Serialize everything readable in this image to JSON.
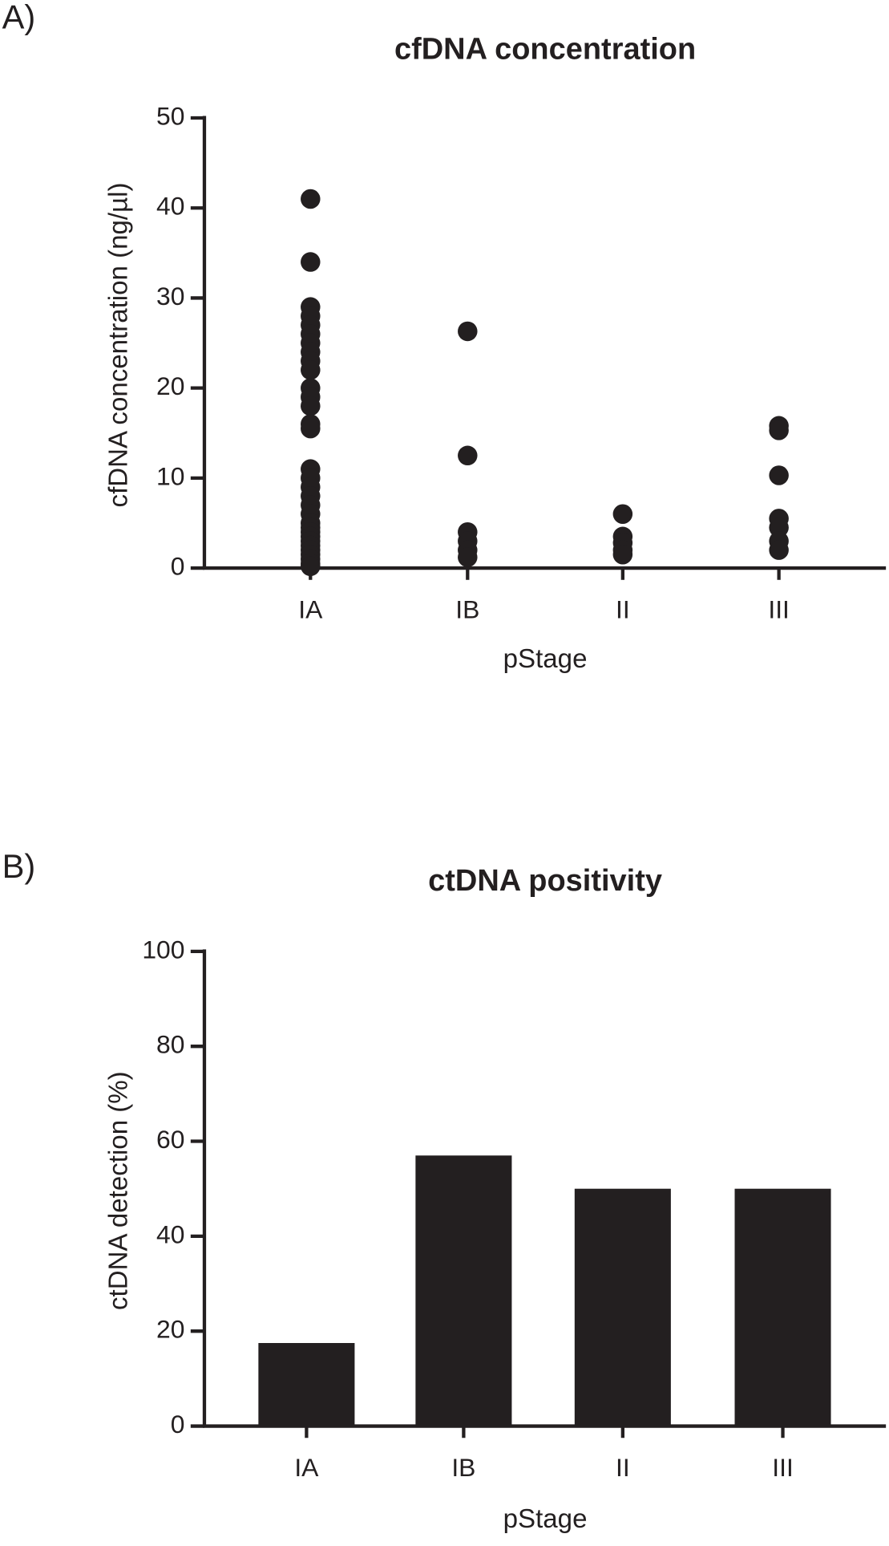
{
  "chart_data": [
    {
      "type": "strip",
      "label": "A)",
      "title": "cfDNA concentration",
      "ylabel": "cfDNA concentration (ng/µl)",
      "xlabel": "pStage",
      "categories": [
        "IA",
        "IB",
        "II",
        "III"
      ],
      "values": [
        [
          41,
          34,
          29,
          28,
          27,
          26,
          25,
          24,
          23,
          22,
          20,
          19,
          18,
          16,
          15.5,
          11,
          10,
          9,
          8,
          7,
          6,
          5,
          4.5,
          4,
          3.5,
          3,
          2.5,
          2,
          1.5,
          1,
          0.5,
          0.2
        ],
        [
          26.3,
          12.5,
          4,
          3,
          2,
          1.2
        ],
        [
          6,
          3.5,
          2.8,
          2,
          1.5
        ],
        [
          15.8,
          15.3,
          10.3,
          5.5,
          4.5,
          3,
          2
        ]
      ],
      "color": "#231f20",
      "ylim": [
        0,
        50
      ],
      "yticks": [
        0,
        10,
        20,
        30,
        40,
        50
      ]
    },
    {
      "type": "bar",
      "label": "B)",
      "title": "ctDNA positivity",
      "ylabel": "ctDNA detection (%)",
      "xlabel": "pStage",
      "categories": [
        "IA",
        "IB",
        "II",
        "III"
      ],
      "values": [
        17.5,
        57,
        50,
        50
      ],
      "color": "#231f20",
      "ylim": [
        0,
        100
      ],
      "yticks": [
        0,
        20,
        40,
        60,
        80,
        100
      ]
    }
  ]
}
